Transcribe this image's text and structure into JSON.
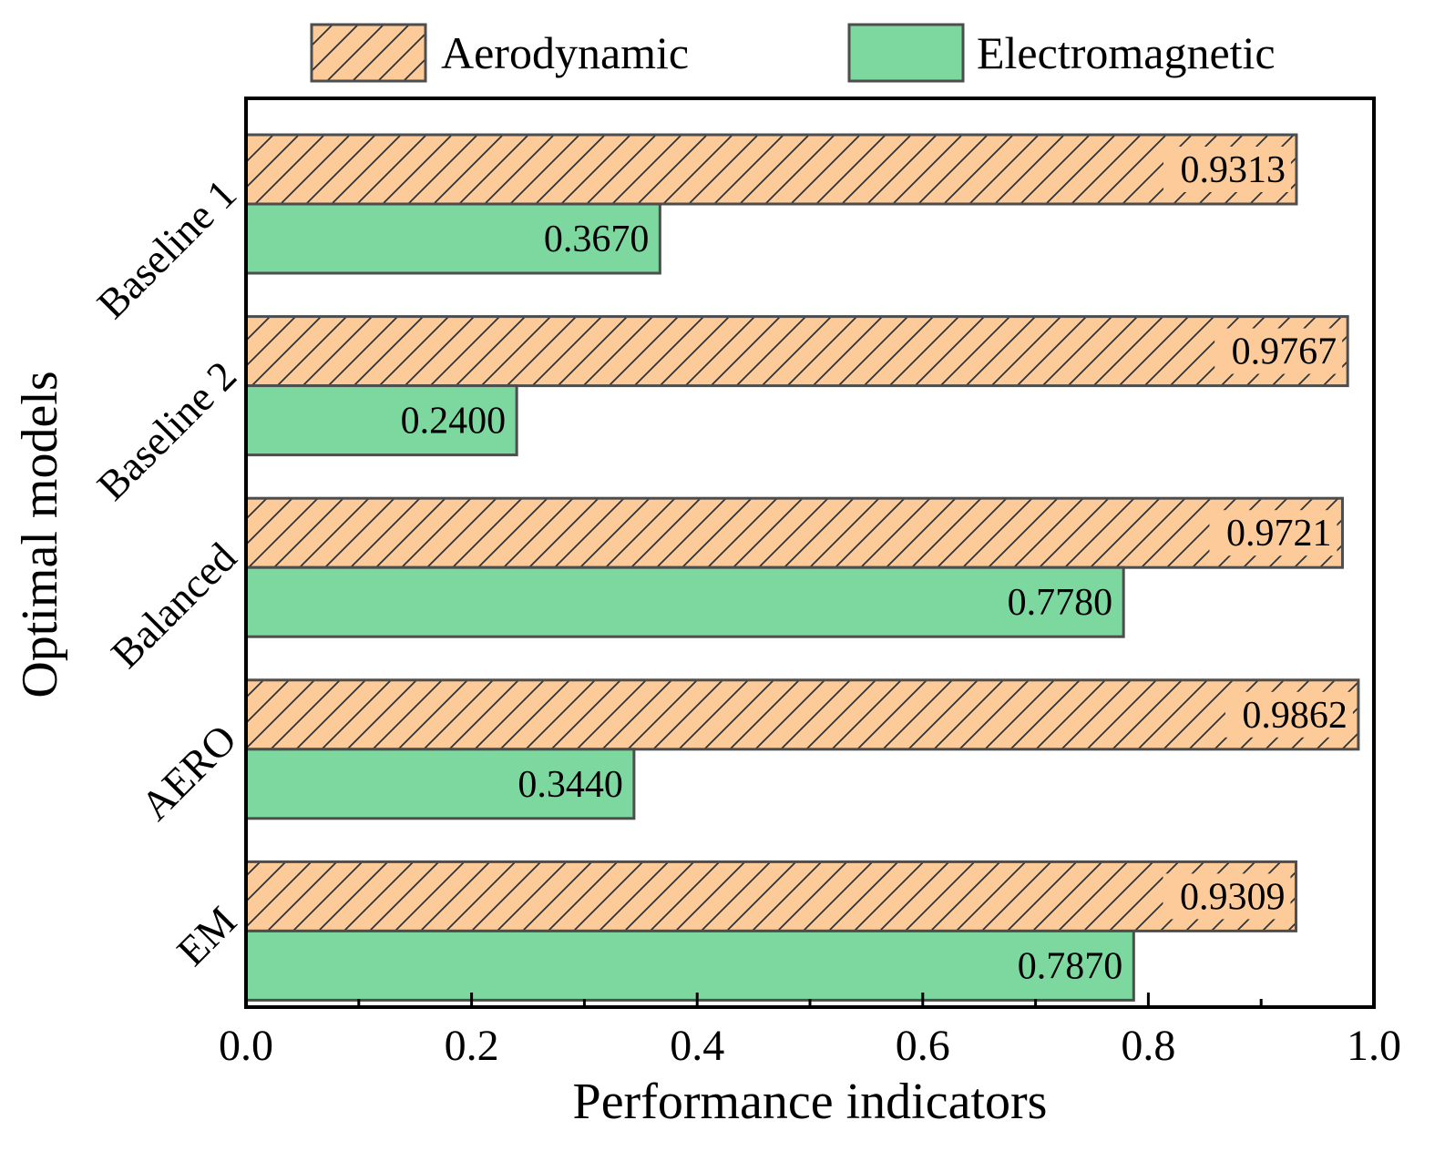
{
  "chart_data": {
    "type": "bar",
    "orientation": "horizontal",
    "categories": [
      "Baseline 1",
      "Baseline 2",
      "Balanced",
      "AERO",
      "EM"
    ],
    "series": [
      {
        "name": "Aerodynamic",
        "values": [
          0.9313,
          0.9767,
          0.9721,
          0.9862,
          0.9309
        ],
        "labels": [
          "0.9313",
          "0.9767",
          "0.9721",
          "0.9862",
          "0.9309"
        ],
        "color": "#FDCB99",
        "pattern": "hatch"
      },
      {
        "name": "Electromagnetic",
        "values": [
          0.367,
          0.24,
          0.778,
          0.344,
          0.787
        ],
        "labels": [
          "0.3670",
          "0.2400",
          "0.7780",
          "0.3440",
          "0.7870"
        ],
        "color": "#7DD8A0",
        "pattern": "solid"
      }
    ],
    "title": "",
    "xlabel": "Performance indicators",
    "ylabel": "Optimal models",
    "xlim": [
      0,
      1.0
    ],
    "xticks": [
      "0.0",
      "0.2",
      "0.4",
      "0.6",
      "0.8",
      "1.0"
    ],
    "minor_ticks": [
      0.1,
      0.3,
      0.5,
      0.7,
      0.9
    ],
    "grid": false,
    "legend": {
      "position": "top",
      "entries": [
        "Aerodynamic",
        "Electromagnetic"
      ]
    }
  },
  "colors": {
    "edge": "#4d4d4d",
    "axis": "#000000"
  }
}
